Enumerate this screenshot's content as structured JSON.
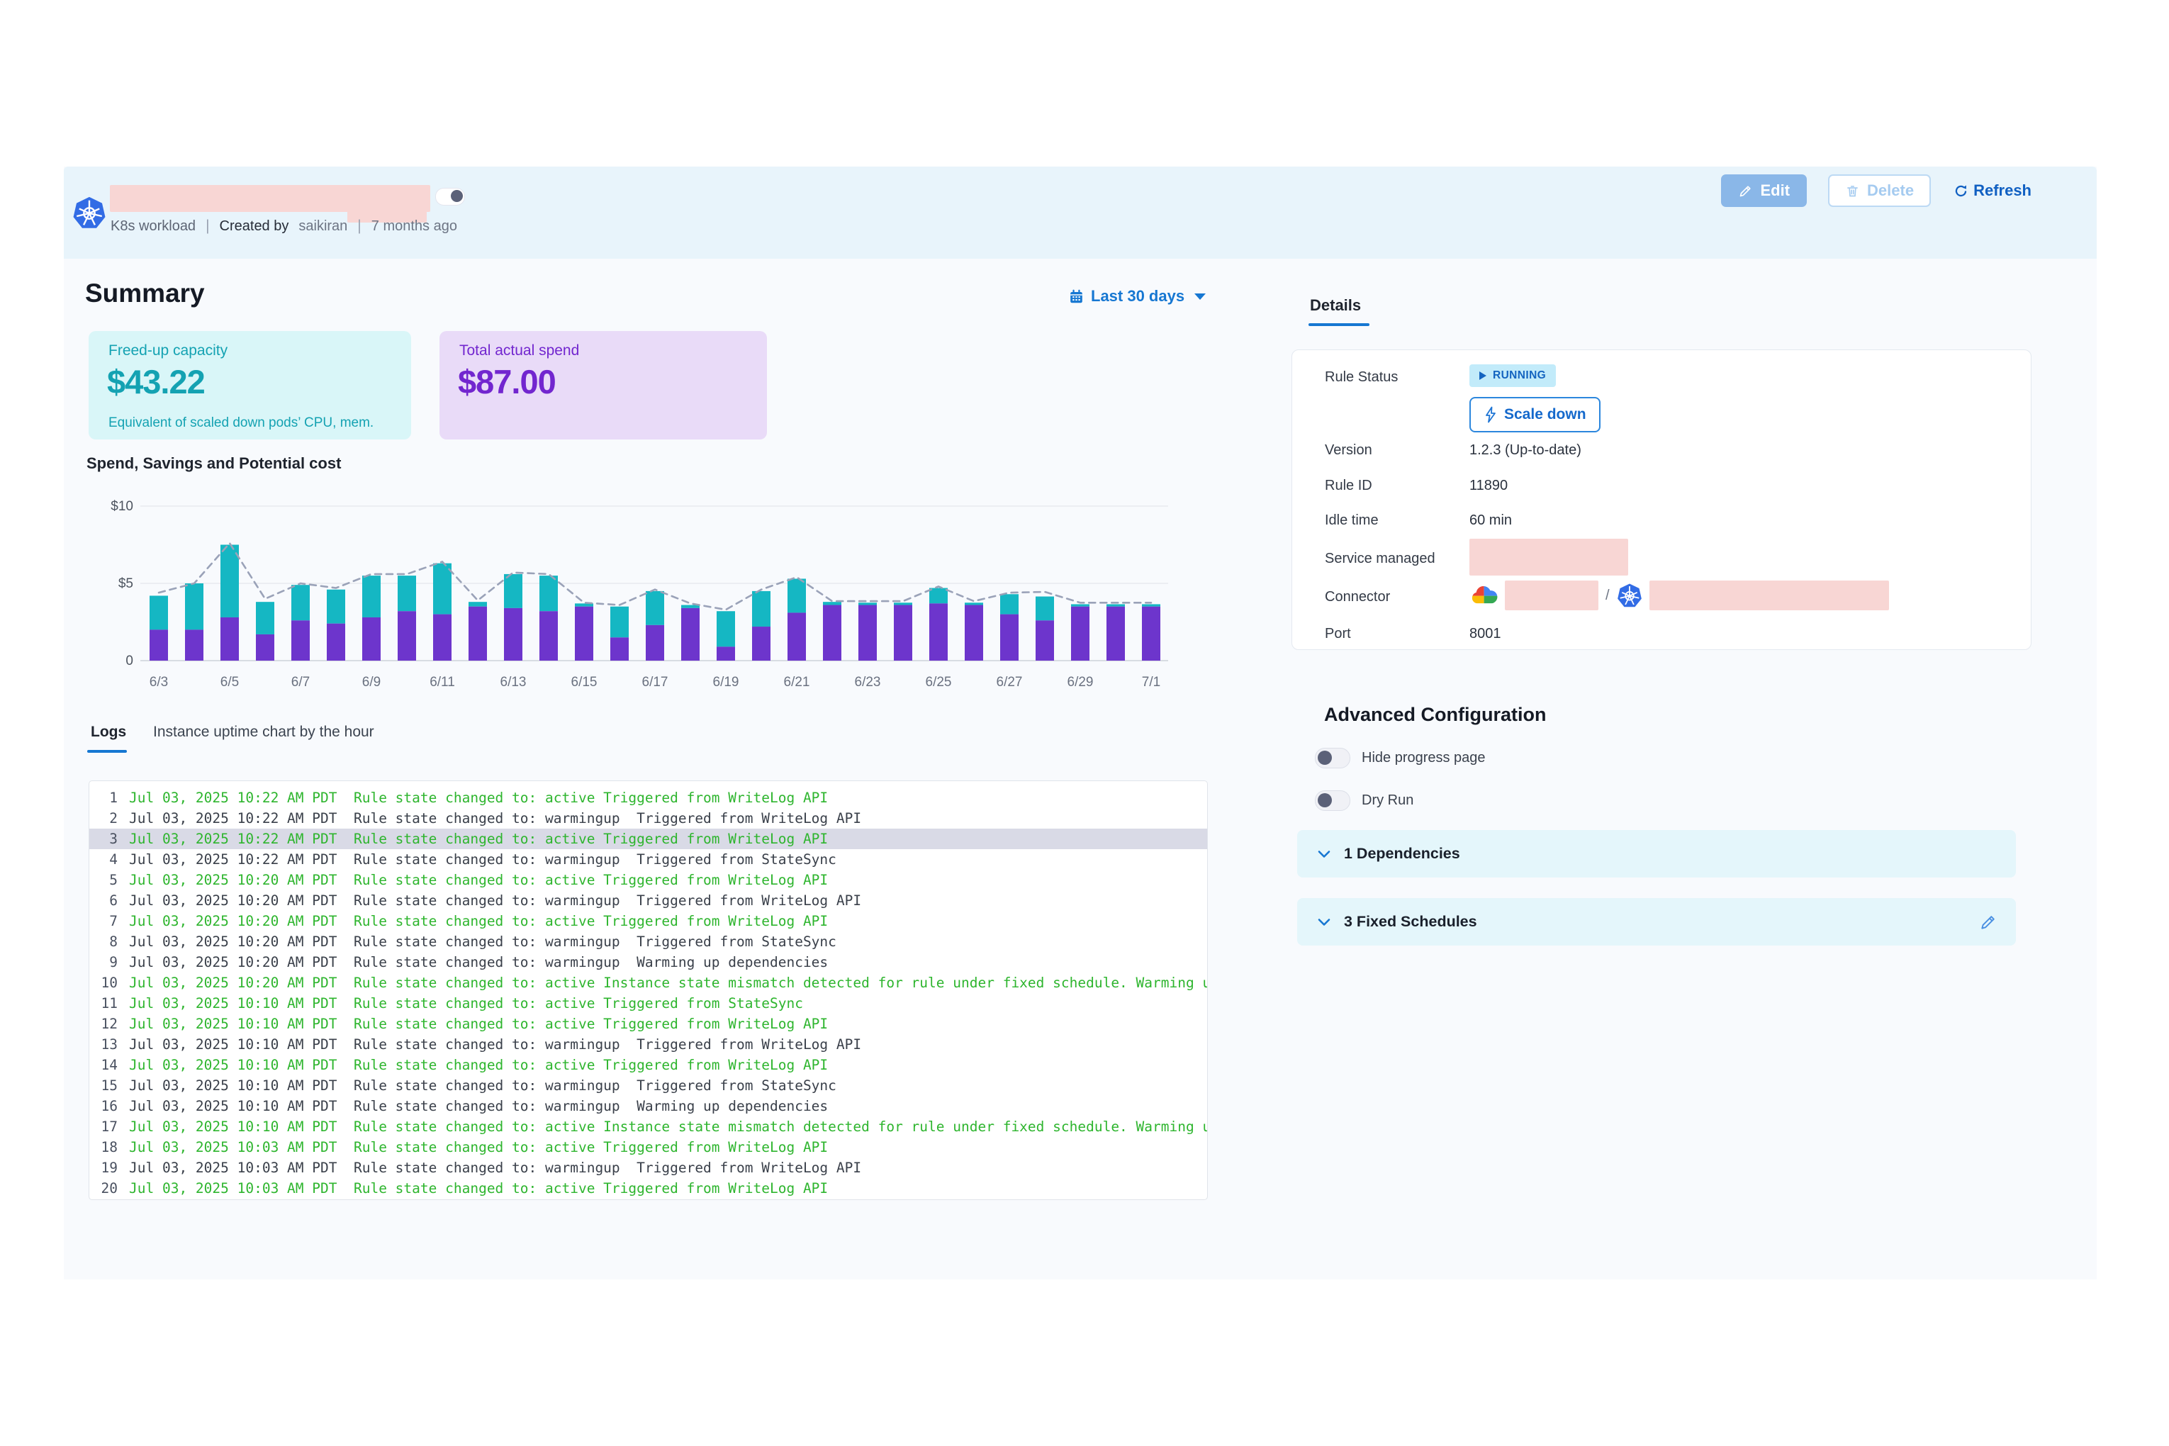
{
  "header": {
    "title_redacted": true,
    "type_label": "K8s workload",
    "created_by_label": "Created by",
    "created_by_user": "saikiran",
    "age": "7 months ago",
    "buttons": {
      "edit": "Edit",
      "delete": "Delete",
      "refresh": "Refresh"
    }
  },
  "summary": {
    "title": "Summary",
    "date_filter": "Last 30 days",
    "cards": [
      {
        "label": "Freed-up capacity",
        "value": "$43.22",
        "caption": "Equivalent of scaled down pods’ CPU, mem.",
        "accent": "#14a2b2",
        "bg": "#d9f6f8"
      },
      {
        "label": "Total actual spend",
        "value": "$87.00",
        "caption": "",
        "accent": "#7226cf",
        "bg": "#e9dbf8"
      }
    ]
  },
  "chart_data": {
    "type": "bar",
    "stacked": true,
    "title": "Spend, Savings and Potential cost",
    "xlabel": "",
    "ylabel": "",
    "ylim": [
      0,
      10
    ],
    "grid": true,
    "y_ticks": [
      {
        "value": 10,
        "label": "$10"
      },
      {
        "value": 5,
        "label": "$5"
      },
      {
        "value": 0,
        "label": "0"
      }
    ],
    "categories": [
      "6/3",
      "6/4",
      "6/5",
      "6/6",
      "6/7",
      "6/8",
      "6/9",
      "6/10",
      "6/11",
      "6/12",
      "6/13",
      "6/14",
      "6/15",
      "6/16",
      "6/17",
      "6/18",
      "6/19",
      "6/20",
      "6/21",
      "6/22",
      "6/23",
      "6/24",
      "6/25",
      "6/26",
      "6/27",
      "6/28",
      "6/29",
      "6/30",
      "7/1"
    ],
    "x_tick_labels_shown": [
      "6/3",
      "6/5",
      "6/7",
      "6/9",
      "6/11",
      "6/13",
      "6/15",
      "6/17",
      "6/19",
      "6/21",
      "6/23",
      "6/25",
      "6/27",
      "6/29",
      "7/1"
    ],
    "series": [
      {
        "name": "Spend",
        "color": "#6d35cc",
        "values": [
          2.0,
          2.0,
          2.8,
          1.7,
          2.6,
          2.4,
          2.8,
          3.2,
          3.0,
          3.5,
          3.4,
          3.2,
          3.5,
          1.5,
          2.3,
          3.4,
          0.9,
          2.2,
          3.1,
          3.6,
          3.6,
          3.6,
          3.7,
          3.6,
          3.0,
          2.6,
          3.5,
          3.5,
          3.5
        ]
      },
      {
        "name": "Savings",
        "color": "#15b7c3",
        "values": [
          2.2,
          3.0,
          4.7,
          2.1,
          2.3,
          2.2,
          2.7,
          2.3,
          3.3,
          0.3,
          2.2,
          2.3,
          0.2,
          2.0,
          2.2,
          0.2,
          2.3,
          2.3,
          2.2,
          0.2,
          0.15,
          0.15,
          1.0,
          0.15,
          1.3,
          1.55,
          0.15,
          0.15,
          0.15
        ]
      },
      {
        "name": "Potential cost",
        "type": "dashed-line",
        "color": "#9aa2b8",
        "values": [
          4.4,
          5.0,
          7.6,
          4.0,
          5.0,
          4.7,
          5.6,
          5.6,
          6.4,
          3.9,
          5.7,
          5.6,
          3.75,
          3.6,
          4.6,
          3.7,
          3.3,
          4.6,
          5.4,
          3.85,
          3.85,
          3.85,
          4.8,
          3.85,
          4.4,
          4.45,
          3.75,
          3.75,
          3.75
        ]
      }
    ]
  },
  "tabs": {
    "active": "Logs",
    "items": [
      "Logs",
      "Instance uptime chart by the hour"
    ]
  },
  "logs": {
    "selected_row": 3,
    "rows": [
      {
        "n": 1,
        "time": "Jul 03, 2025 10:22 AM PDT",
        "message": "Rule state changed to: active Triggered from WriteLog API",
        "color": "green"
      },
      {
        "n": 2,
        "time": "Jul 03, 2025 10:22 AM PDT",
        "message": "Rule state changed to: warmingup  Triggered from WriteLog API",
        "color": "dark"
      },
      {
        "n": 3,
        "time": "Jul 03, 2025 10:22 AM PDT",
        "message": "Rule state changed to: active Triggered from WriteLog API",
        "color": "green"
      },
      {
        "n": 4,
        "time": "Jul 03, 2025 10:22 AM PDT",
        "message": "Rule state changed to: warmingup  Triggered from StateSync",
        "color": "dark"
      },
      {
        "n": 5,
        "time": "Jul 03, 2025 10:20 AM PDT",
        "message": "Rule state changed to: active Triggered from WriteLog API",
        "color": "green"
      },
      {
        "n": 6,
        "time": "Jul 03, 2025 10:20 AM PDT",
        "message": "Rule state changed to: warmingup  Triggered from WriteLog API",
        "color": "dark"
      },
      {
        "n": 7,
        "time": "Jul 03, 2025 10:20 AM PDT",
        "message": "Rule state changed to: active Triggered from WriteLog API",
        "color": "green"
      },
      {
        "n": 8,
        "time": "Jul 03, 2025 10:20 AM PDT",
        "message": "Rule state changed to: warmingup  Triggered from StateSync",
        "color": "dark"
      },
      {
        "n": 9,
        "time": "Jul 03, 2025 10:20 AM PDT",
        "message": "Rule state changed to: warmingup  Warming up dependencies",
        "color": "dark"
      },
      {
        "n": 10,
        "time": "Jul 03, 2025 10:20 AM PDT",
        "message": "Rule state changed to: active Instance state mismatch detected for rule under fixed schedule. Warming up",
        "color": "green"
      },
      {
        "n": 11,
        "time": "Jul 03, 2025 10:10 AM PDT",
        "message": "Rule state changed to: active Triggered from StateSync",
        "color": "green"
      },
      {
        "n": 12,
        "time": "Jul 03, 2025 10:10 AM PDT",
        "message": "Rule state changed to: active Triggered from WriteLog API",
        "color": "green"
      },
      {
        "n": 13,
        "time": "Jul 03, 2025 10:10 AM PDT",
        "message": "Rule state changed to: warmingup  Triggered from WriteLog API",
        "color": "dark"
      },
      {
        "n": 14,
        "time": "Jul 03, 2025 10:10 AM PDT",
        "message": "Rule state changed to: active Triggered from WriteLog API",
        "color": "green"
      },
      {
        "n": 15,
        "time": "Jul 03, 2025 10:10 AM PDT",
        "message": "Rule state changed to: warmingup  Triggered from StateSync",
        "color": "dark"
      },
      {
        "n": 16,
        "time": "Jul 03, 2025 10:10 AM PDT",
        "message": "Rule state changed to: warmingup  Warming up dependencies",
        "color": "dark"
      },
      {
        "n": 17,
        "time": "Jul 03, 2025 10:10 AM PDT",
        "message": "Rule state changed to: active Instance state mismatch detected for rule under fixed schedule. Warming up",
        "color": "green"
      },
      {
        "n": 18,
        "time": "Jul 03, 2025 10:03 AM PDT",
        "message": "Rule state changed to: active Triggered from WriteLog API",
        "color": "green"
      },
      {
        "n": 19,
        "time": "Jul 03, 2025 10:03 AM PDT",
        "message": "Rule state changed to: warmingup  Triggered from WriteLog API",
        "color": "dark"
      },
      {
        "n": 20,
        "time": "Jul 03, 2025 10:03 AM PDT",
        "message": "Rule state changed to: active Triggered from WriteLog API",
        "color": "green"
      }
    ]
  },
  "details": {
    "tab": "Details",
    "rule_status_label": "Rule Status",
    "rule_status_badge": "RUNNING",
    "scale_down_label": "Scale down",
    "version_label": "Version",
    "version": "1.2.3 (Up-to-date)",
    "rule_id_label": "Rule ID",
    "rule_id": "11890",
    "idle_label": "Idle time",
    "idle": "60 min",
    "service_label": "Service managed",
    "service_redacted": true,
    "connector_label": "Connector",
    "connector_redacted": true,
    "port_label": "Port",
    "port": "8001"
  },
  "advanced": {
    "title": "Advanced Configuration",
    "toggles": [
      {
        "label": "Hide progress page",
        "on": false
      },
      {
        "label": "Dry Run",
        "on": false
      }
    ],
    "sections": [
      {
        "label": "1 Dependencies",
        "editable": false
      },
      {
        "label": "3 Fixed Schedules",
        "editable": true
      }
    ]
  },
  "colors": {
    "accent_blue": "#1677d2",
    "band_bg": "#e8f4fb",
    "redaction_pink": "#f8d6d4",
    "log_green": "#2eb52e",
    "bar_purple": "#6d35cc",
    "bar_teal": "#15b7c3"
  }
}
